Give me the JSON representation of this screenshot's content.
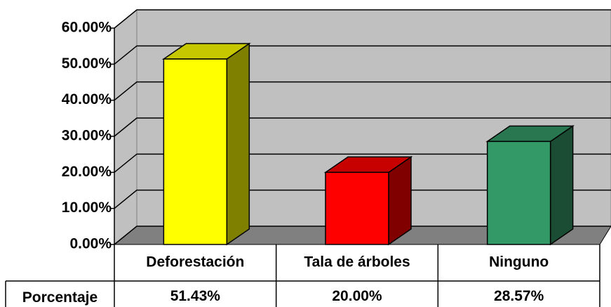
{
  "chart_data": {
    "type": "bar3d",
    "categories": [
      "Deforestación",
      "Tala de árboles",
      "Ninguno"
    ],
    "series": [
      {
        "name": "Porcentaje",
        "values": [
          51.43,
          20.0,
          28.57
        ],
        "value_labels": [
          "51.43%",
          "20.00%",
          "28.57%"
        ]
      }
    ],
    "colors": [
      "#ffff00",
      "#ff0000",
      "#339966"
    ],
    "ylim": [
      0,
      60
    ],
    "yticks": [
      {
        "value": 0,
        "label": "0.00%"
      },
      {
        "value": 10,
        "label": "10.00%"
      },
      {
        "value": 20,
        "label": "20.00%"
      },
      {
        "value": 30,
        "label": "30.00%"
      },
      {
        "value": 40,
        "label": "40.00%"
      },
      {
        "value": 50,
        "label": "50.00%"
      },
      {
        "value": 60,
        "label": "60.00%"
      }
    ],
    "grid": true
  }
}
